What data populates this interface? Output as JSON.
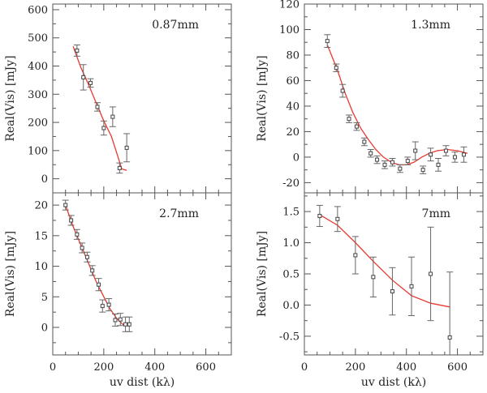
{
  "chart_data": [
    {
      "type": "scatter",
      "panel": "top-left",
      "band_label": "0.87mm",
      "ylabel": "Real(Vis) [mJy]",
      "xlabel": "",
      "xlim": [
        0,
        700
      ],
      "ylim": [
        -50,
        620
      ],
      "x_ticks": [
        0,
        200,
        400,
        600
      ],
      "x_tick_labels": [],
      "y_ticks": [
        0,
        100,
        200,
        300,
        400,
        500,
        600
      ],
      "y_tick_labels": [
        "0",
        "100",
        "200",
        "300",
        "400",
        "500",
        "600"
      ],
      "points": [
        {
          "x": 95,
          "y": 455,
          "err": 20
        },
        {
          "x": 120,
          "y": 360,
          "err": 45
        },
        {
          "x": 148,
          "y": 340,
          "err": 15
        },
        {
          "x": 175,
          "y": 255,
          "err": 15
        },
        {
          "x": 200,
          "y": 180,
          "err": 25
        },
        {
          "x": 235,
          "y": 220,
          "err": 35
        },
        {
          "x": 262,
          "y": 38,
          "err": 18
        },
        {
          "x": 290,
          "y": 110,
          "err": 50
        }
      ],
      "model": {
        "x": [
          80,
          110,
          140,
          170,
          200,
          230,
          255,
          270,
          290
        ],
        "y": [
          470,
          395,
          335,
          270,
          205,
          150,
          80,
          35,
          30
        ]
      }
    },
    {
      "type": "scatter",
      "panel": "top-right",
      "band_label": "1.3mm",
      "ylabel": "Real(Vis) [mJy]",
      "xlabel": "",
      "xlim": [
        0,
        700
      ],
      "ylim": [
        -28,
        120
      ],
      "x_ticks": [
        0,
        200,
        400,
        600
      ],
      "x_tick_labels": [],
      "y_ticks": [
        -20,
        0,
        20,
        40,
        60,
        80,
        100,
        120
      ],
      "y_tick_labels": [
        "-20",
        "0",
        "20",
        "40",
        "60",
        "80",
        "100",
        "120"
      ],
      "points": [
        {
          "x": 90,
          "y": 91,
          "err": 5
        },
        {
          "x": 125,
          "y": 70,
          "err": 3
        },
        {
          "x": 150,
          "y": 52,
          "err": 5
        },
        {
          "x": 175,
          "y": 30,
          "err": 3
        },
        {
          "x": 205,
          "y": 24,
          "err": 3
        },
        {
          "x": 235,
          "y": 12,
          "err": 3
        },
        {
          "x": 260,
          "y": 3,
          "err": 3
        },
        {
          "x": 285,
          "y": -2,
          "err": 3
        },
        {
          "x": 315,
          "y": -6,
          "err": 3
        },
        {
          "x": 345,
          "y": -4,
          "err": 3
        },
        {
          "x": 375,
          "y": -9,
          "err": 3
        },
        {
          "x": 405,
          "y": -3,
          "err": 3
        },
        {
          "x": 435,
          "y": 5,
          "err": 7
        },
        {
          "x": 465,
          "y": -10,
          "err": 3
        },
        {
          "x": 495,
          "y": 2,
          "err": 5
        },
        {
          "x": 525,
          "y": -6,
          "err": 5
        },
        {
          "x": 555,
          "y": 5,
          "err": 4
        },
        {
          "x": 590,
          "y": 0,
          "err": 4
        },
        {
          "x": 625,
          "y": 2,
          "err": 6
        }
      ],
      "model": {
        "x": [
          90,
          130,
          160,
          190,
          220,
          250,
          280,
          310,
          340,
          370,
          400,
          430,
          460,
          490,
          520,
          560,
          600,
          640
        ],
        "y": [
          88,
          68,
          50,
          35,
          23,
          14,
          6,
          0,
          -4,
          -6,
          -6,
          -4,
          0,
          3,
          5,
          6,
          5,
          3
        ]
      }
    },
    {
      "type": "scatter",
      "panel": "bottom-left",
      "band_label": "2.7mm",
      "ylabel": "Real(Vis) [mJy]",
      "xlabel": "uv dist (kλ)",
      "xlim": [
        0,
        700
      ],
      "ylim": [
        -4.5,
        22
      ],
      "x_ticks": [
        0,
        200,
        400,
        600
      ],
      "x_tick_labels": [
        "0",
        "200",
        "400",
        "600"
      ],
      "y_ticks": [
        0,
        5,
        10,
        15,
        20
      ],
      "y_tick_labels": [
        "0",
        "5",
        "10",
        "15",
        "20"
      ],
      "points": [
        {
          "x": 50,
          "y": 20,
          "err": 0.8
        },
        {
          "x": 72,
          "y": 17.5,
          "err": 0.8
        },
        {
          "x": 95,
          "y": 15.2,
          "err": 0.8
        },
        {
          "x": 115,
          "y": 13,
          "err": 0.8
        },
        {
          "x": 135,
          "y": 11.5,
          "err": 0.8
        },
        {
          "x": 155,
          "y": 9.3,
          "err": 0.8
        },
        {
          "x": 180,
          "y": 7,
          "err": 1
        },
        {
          "x": 195,
          "y": 3.5,
          "err": 1
        },
        {
          "x": 220,
          "y": 3.7,
          "err": 1
        },
        {
          "x": 245,
          "y": 1.2,
          "err": 1
        },
        {
          "x": 265,
          "y": 1.3,
          "err": 1
        },
        {
          "x": 285,
          "y": 0.5,
          "err": 1.2
        },
        {
          "x": 300,
          "y": 0.5,
          "err": 1.2
        }
      ],
      "model": {
        "x": [
          50,
          80,
          110,
          140,
          170,
          200,
          225,
          250,
          275,
          300
        ],
        "y": [
          20,
          16.5,
          13.5,
          10.5,
          7.5,
          5,
          3,
          1.5,
          0.5,
          0.2
        ]
      }
    },
    {
      "type": "scatter",
      "panel": "bottom-right",
      "band_label": "7mm",
      "ylabel": "Real(Vis) [mJy]",
      "xlabel": "uv dist (kλ)",
      "xlim": [
        0,
        700
      ],
      "ylim": [
        -0.8,
        1.8
      ],
      "x_ticks": [
        0,
        200,
        400,
        600
      ],
      "x_tick_labels": [
        "0",
        "200",
        "400",
        "600"
      ],
      "y_ticks": [
        -0.5,
        0.0,
        0.5,
        1.0,
        1.5
      ],
      "y_tick_labels": [
        "-0.5",
        "0.0",
        "0.5",
        "1.0",
        "1.5"
      ],
      "points": [
        {
          "x": 60,
          "y": 1.43,
          "err": 0.17
        },
        {
          "x": 130,
          "y": 1.38,
          "err": 0.2
        },
        {
          "x": 200,
          "y": 0.8,
          "err": 0.3
        },
        {
          "x": 270,
          "y": 0.45,
          "err": 0.32
        },
        {
          "x": 345,
          "y": 0.22,
          "err": 0.38
        },
        {
          "x": 420,
          "y": 0.3,
          "err": 0.47
        },
        {
          "x": 495,
          "y": 0.5,
          "err": 0.75
        },
        {
          "x": 570,
          "y": -0.52,
          "err": 1.05
        }
      ],
      "model": {
        "x": [
          60,
          130,
          200,
          270,
          345,
          420,
          495,
          570
        ],
        "y": [
          1.45,
          1.28,
          1.0,
          0.7,
          0.4,
          0.15,
          0.03,
          -0.03
        ]
      }
    }
  ],
  "style": {
    "axis_color": "#555555",
    "point_color": "#444444",
    "error_color": "#666666",
    "model_color": "#e8392f"
  }
}
